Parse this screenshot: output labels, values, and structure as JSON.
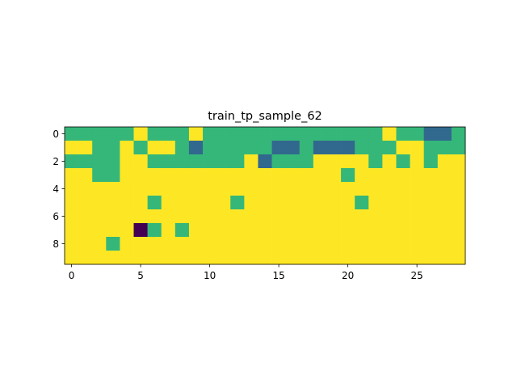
{
  "chart_data": {
    "type": "heatmap",
    "title": "train_tp_sample_62",
    "xlabel": "",
    "ylabel": "",
    "n_rows": 10,
    "n_cols": 29,
    "x_ticks": [
      0,
      5,
      10,
      15,
      20,
      25
    ],
    "x_tick_labels": [
      "0",
      "5",
      "10",
      "15",
      "20",
      "25"
    ],
    "y_ticks": [
      0,
      2,
      4,
      6,
      8
    ],
    "y_tick_labels": [
      "0",
      "2",
      "4",
      "6",
      "8"
    ],
    "grid": false,
    "legend": "none",
    "colormap": "viridis",
    "value_colors": {
      "0": "#440154",
      "1": "#31688e",
      "2": "#35b779",
      "3": "#fde725"
    },
    "values": [
      [
        2,
        2,
        2,
        2,
        2,
        3,
        2,
        2,
        2,
        3,
        2,
        2,
        2,
        2,
        2,
        2,
        2,
        2,
        2,
        2,
        2,
        2,
        2,
        3,
        2,
        2,
        1,
        1,
        2
      ],
      [
        3,
        3,
        2,
        2,
        3,
        2,
        3,
        3,
        2,
        1,
        2,
        2,
        2,
        2,
        2,
        1,
        1,
        2,
        1,
        1,
        1,
        2,
        2,
        2,
        3,
        3,
        2,
        2,
        2
      ],
      [
        2,
        2,
        2,
        2,
        3,
        3,
        2,
        2,
        2,
        2,
        2,
        2,
        2,
        3,
        1,
        2,
        2,
        2,
        3,
        3,
        3,
        3,
        2,
        3,
        2,
        3,
        2,
        3,
        3
      ],
      [
        3,
        3,
        2,
        2,
        3,
        3,
        3,
        3,
        3,
        3,
        3,
        3,
        3,
        3,
        3,
        3,
        3,
        3,
        3,
        3,
        2,
        3,
        3,
        3,
        3,
        3,
        3,
        3,
        3
      ],
      [
        3,
        3,
        3,
        3,
        3,
        3,
        3,
        3,
        3,
        3,
        3,
        3,
        3,
        3,
        3,
        3,
        3,
        3,
        3,
        3,
        3,
        3,
        3,
        3,
        3,
        3,
        3,
        3,
        3
      ],
      [
        3,
        3,
        3,
        3,
        3,
        3,
        2,
        3,
        3,
        3,
        3,
        3,
        2,
        3,
        3,
        3,
        3,
        3,
        3,
        3,
        3,
        2,
        3,
        3,
        3,
        3,
        3,
        3,
        3
      ],
      [
        3,
        3,
        3,
        3,
        3,
        3,
        3,
        3,
        3,
        3,
        3,
        3,
        3,
        3,
        3,
        3,
        3,
        3,
        3,
        3,
        3,
        3,
        3,
        3,
        3,
        3,
        3,
        3,
        3
      ],
      [
        3,
        3,
        3,
        3,
        3,
        0,
        2,
        3,
        2,
        3,
        3,
        3,
        3,
        3,
        3,
        3,
        3,
        3,
        3,
        3,
        3,
        3,
        3,
        3,
        3,
        3,
        3,
        3,
        3
      ],
      [
        3,
        3,
        3,
        2,
        3,
        3,
        3,
        3,
        3,
        3,
        3,
        3,
        3,
        3,
        3,
        3,
        3,
        3,
        3,
        3,
        3,
        3,
        3,
        3,
        3,
        3,
        3,
        3,
        3
      ],
      [
        3,
        3,
        3,
        3,
        3,
        3,
        3,
        3,
        3,
        3,
        3,
        3,
        3,
        3,
        3,
        3,
        3,
        3,
        3,
        3,
        3,
        3,
        3,
        3,
        3,
        3,
        3,
        3,
        3
      ]
    ]
  }
}
